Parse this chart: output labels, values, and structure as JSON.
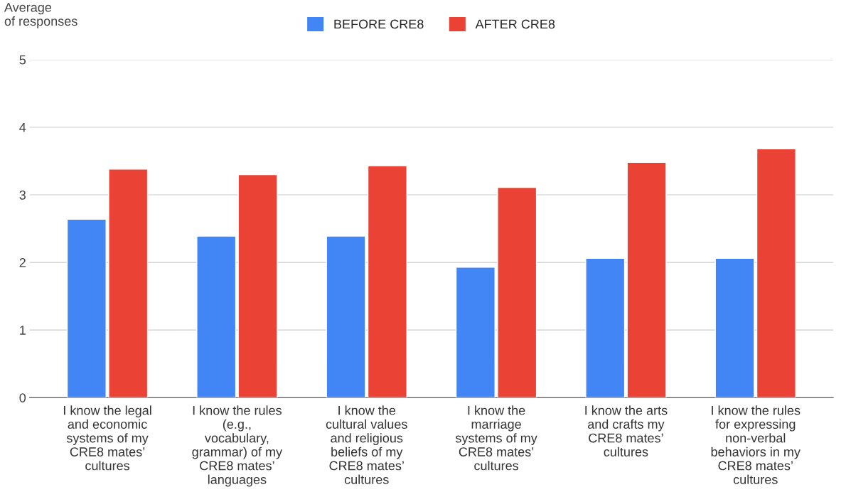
{
  "chart_data": {
    "type": "bar",
    "ylabel": "Average\nof responses",
    "categories": [
      "I know the legal\nand economic\nsystems of my\nCRE8 mates’\ncultures",
      "I know the rules\n(e.g.,\nvocabulary,\ngrammar) of my\nCRE8 mates’\nlanguages",
      "I know the\ncultural values\nand religious\nbeliefs of my\nCRE8 mates’\ncultures",
      "I know the\nmarriage\nsystems of my\nCRE8 mates’\ncultures",
      "I know the arts\nand crafts my\nCRE8 mates’\ncultures",
      "I know the rules\nfor expressing\nnon-verbal\nbehaviors in my\nCRE8 mates’\ncultures"
    ],
    "series": [
      {
        "name": "BEFORE CRE8",
        "color": "#4285f4",
        "values": [
          2.64,
          2.39,
          2.39,
          1.93,
          2.06,
          2.06
        ]
      },
      {
        "name": "AFTER CRE8",
        "color": "#ea4335",
        "values": [
          3.38,
          3.3,
          3.43,
          3.11,
          3.48,
          3.68
        ]
      }
    ],
    "ylim": [
      0,
      5
    ],
    "yticks": [
      0,
      1,
      2,
      3,
      4,
      5
    ],
    "grid": "y",
    "legend": "top"
  }
}
